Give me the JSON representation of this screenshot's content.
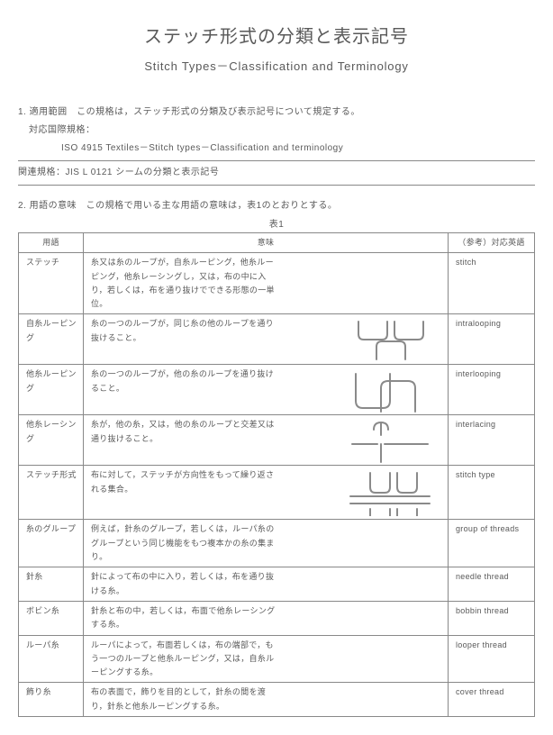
{
  "title_ja": "ステッチ形式の分類と表示記号",
  "subtitle_en": "Stitch Types－Classification and Terminology",
  "scope_line": "1. 適用範囲　この規格は，ステッチ形式の分類及び表示記号について規定する。",
  "intl_label": "対応国際規格：",
  "intl_std": "ISO 4915 Textiles－Stitch types－Classification and terminology",
  "related_std": "関連規格：JIS L 0121 シームの分類と表示記号",
  "defs_line": "2. 用語の意味　この規格で用いる主な用語の意味は，表1のとおりとする。",
  "table_label": "表1",
  "columns": {
    "term": "用語",
    "meaning": "意味",
    "ref_en": "（参考）対応英語"
  },
  "rows": [
    {
      "term": "ステッチ",
      "meaning": "糸又は糸のループが，自糸ルーピング，他糸ルーピング，他糸レーシングし，又は，布の中に入り，若しくは，布を通り抜けでできる形態の一単位。",
      "en": "stitch",
      "svg": null,
      "min_h": 0
    },
    {
      "term": "自糸ルーピング",
      "meaning": "糸の一つのループが，同じ糸の他のループを通り抜けること。",
      "en": "intralooping",
      "svg": "intraloop",
      "min_h": 56
    },
    {
      "term": "他糸ルーピング",
      "meaning": "糸の一つのループが，他の糸のループを通り抜けること。",
      "en": "interlooping",
      "svg": "interloop",
      "min_h": 56
    },
    {
      "term": "他糸レーシング",
      "meaning": "糸が，他の糸，又は，他の糸のループと交差又は通り抜けること。",
      "en": "interlacing",
      "svg": "interlace",
      "min_h": 56
    },
    {
      "term": "ステッチ形式",
      "meaning": "布に対して，ステッチが方向性をもって繰り返される集合。",
      "en": "stitch type",
      "svg": "stitchtype",
      "min_h": 60
    },
    {
      "term": "糸のグループ",
      "meaning": "例えば，針糸のグループ，若しくは，ルーパ糸のグループという同じ機能をもつ複本かの糸の集まり。",
      "en": "group of threads",
      "svg": null,
      "min_h": 0
    },
    {
      "term": "針糸",
      "meaning": "針によって布の中に入り，若しくは，布を通り抜ける糸。",
      "en": "needle thread",
      "svg": null,
      "min_h": 0
    },
    {
      "term": "ボビン糸",
      "meaning": "針糸と布の中，若しくは，布面で他糸レーシングする糸。",
      "en": "bobbin thread",
      "svg": null,
      "min_h": 0
    },
    {
      "term": "ルーパ糸",
      "meaning": "ルーパによって，布面若しくは，布の端部で，もう一つのループと他糸ルーピング，又は，自糸ルーピングする糸。",
      "en": "looper thread",
      "svg": null,
      "min_h": 0
    },
    {
      "term": "飾り糸",
      "meaning": "布の表面で，飾りを目的として，針糸の間を渡り，針糸と他糸ルーピングする糸。",
      "en": "cover thread",
      "svg": null,
      "min_h": 0
    }
  ],
  "svg_style": {
    "stroke": "#8a8a8a",
    "stroke_width": 2,
    "fill": "none",
    "w": 100,
    "h": 54
  }
}
